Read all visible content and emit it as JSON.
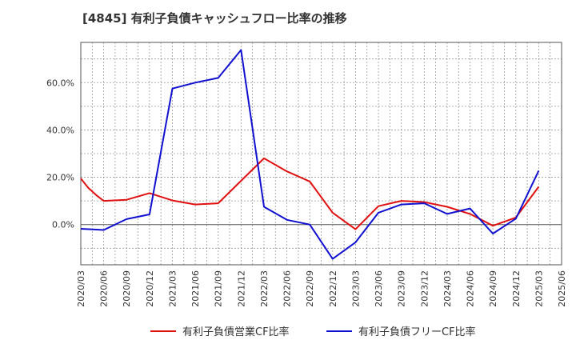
{
  "chart_data": {
    "type": "line",
    "title": "[4845]  有利子負債キャッシュフロー比率の推移",
    "xlabel": "",
    "ylabel": "",
    "ylim": [
      -17,
      77
    ],
    "yticks": [
      0,
      20,
      40,
      60
    ],
    "ytick_labels": [
      "0.0%",
      "20.0%",
      "40.0%",
      "60.0%"
    ],
    "x_tick_labels": [
      "2020/03",
      "2020/06",
      "2020/09",
      "2020/12",
      "2021/03",
      "2021/06",
      "2021/09",
      "2021/12",
      "2022/03",
      "2022/06",
      "2022/09",
      "2022/12",
      "2023/03",
      "2023/06",
      "2023/09",
      "2023/12",
      "2024/03",
      "2024/06",
      "2024/09",
      "2024/12",
      "2025/03",
      "2025/06"
    ],
    "grid": true,
    "legend_position": "bottom",
    "series": [
      {
        "name": "有利子負債営業CF比率",
        "color": "#e01010",
        "points": [
          {
            "x": 0,
            "y": 19.5
          },
          {
            "x": 0.33,
            "y": 15.5
          },
          {
            "x": 0.67,
            "y": 12.5
          },
          {
            "x": 1,
            "y": 10.0
          },
          {
            "x": 2,
            "y": 10.5
          },
          {
            "x": 3,
            "y": 13.3
          },
          {
            "x": 4,
            "y": 10.2
          },
          {
            "x": 5,
            "y": 8.5
          },
          {
            "x": 6,
            "y": 9.0
          },
          {
            "x": 8,
            "y": 28.0
          },
          {
            "x": 9,
            "y": 22.5
          },
          {
            "x": 10,
            "y": 18.2
          },
          {
            "x": 11,
            "y": 5.0
          },
          {
            "x": 12,
            "y": -2.0
          },
          {
            "x": 13,
            "y": 7.8
          },
          {
            "x": 14,
            "y": 10.0
          },
          {
            "x": 15,
            "y": 9.5
          },
          {
            "x": 16,
            "y": 7.5
          },
          {
            "x": 17,
            "y": 4.5
          },
          {
            "x": 18,
            "y": -0.5
          },
          {
            "x": 19,
            "y": 3.0
          },
          {
            "x": 20,
            "y": 16.0
          }
        ]
      },
      {
        "name": "有利子負債フリーCF比率",
        "color": "#1010d0",
        "points": [
          {
            "x": 0,
            "y": -1.8
          },
          {
            "x": 1,
            "y": -2.3
          },
          {
            "x": 2,
            "y": 2.3
          },
          {
            "x": 3,
            "y": 4.3
          },
          {
            "x": 4,
            "y": 57.5
          },
          {
            "x": 5,
            "y": 60.0
          },
          {
            "x": 6,
            "y": 62.0
          },
          {
            "x": 7,
            "y": 73.8
          },
          {
            "x": 8,
            "y": 7.5
          },
          {
            "x": 9,
            "y": 2.0
          },
          {
            "x": 10,
            "y": 0.0
          },
          {
            "x": 11,
            "y": -14.5
          },
          {
            "x": 12,
            "y": -7.5
          },
          {
            "x": 13,
            "y": 5.0
          },
          {
            "x": 14,
            "y": 8.5
          },
          {
            "x": 15,
            "y": 9.0
          },
          {
            "x": 16,
            "y": 4.5
          },
          {
            "x": 17,
            "y": 6.8
          },
          {
            "x": 18,
            "y": -3.8
          },
          {
            "x": 19,
            "y": 2.5
          },
          {
            "x": 20,
            "y": 22.8
          }
        ]
      }
    ]
  }
}
